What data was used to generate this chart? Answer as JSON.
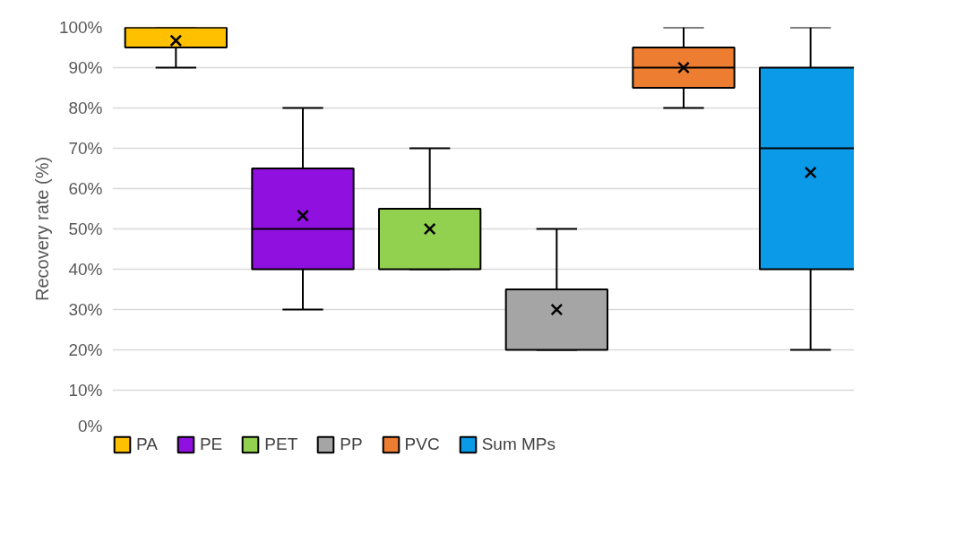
{
  "chart_data": {
    "type": "box",
    "ylabel": "Recovery rate (%)",
    "categories": [
      null
    ],
    "ylim": [
      0,
      100
    ],
    "yticks": [
      {
        "value": 0,
        "label": "0%"
      },
      {
        "value": 10,
        "label": "10%"
      },
      {
        "value": 20,
        "label": "20%"
      },
      {
        "value": 30,
        "label": "30%"
      },
      {
        "value": 40,
        "label": "40%"
      },
      {
        "value": 50,
        "label": "50%"
      },
      {
        "value": 60,
        "label": "60%"
      },
      {
        "value": 70,
        "label": "70%"
      },
      {
        "value": 80,
        "label": "80%"
      },
      {
        "value": 90,
        "label": "90%"
      },
      {
        "value": 100,
        "label": "100%"
      }
    ],
    "grid": "y",
    "legend": "bottom",
    "marker": "cross",
    "series": [
      {
        "name": "PA",
        "color": "#ffc000",
        "boxes": [
          {
            "low": 90,
            "q1": 95,
            "median": 100,
            "q3": 100,
            "high": 100,
            "mean": 96.7
          }
        ]
      },
      {
        "name": "PE",
        "color": "#9010e0",
        "boxes": [
          {
            "low": 30,
            "q1": 40,
            "median": 50,
            "q3": 65,
            "high": 80,
            "mean": 53.3
          }
        ]
      },
      {
        "name": "PET",
        "color": "#92d050",
        "boxes": [
          {
            "low": 40,
            "q1": 40,
            "median": 55,
            "q3": 55,
            "high": 70,
            "mean": 50
          }
        ]
      },
      {
        "name": "PP",
        "color": "#a5a5a5",
        "boxes": [
          {
            "low": 20,
            "q1": 20,
            "median": 35,
            "q3": 35,
            "high": 50,
            "mean": 30
          }
        ]
      },
      {
        "name": "PVC",
        "color": "#ed7d31",
        "boxes": [
          {
            "low": 80,
            "q1": 85,
            "median": 90,
            "q3": 95,
            "high": 100,
            "mean": 90
          }
        ]
      },
      {
        "name": "Sum MPs",
        "color": "#0a9ae8",
        "boxes": [
          {
            "low": 20,
            "q1": 40,
            "median": 70,
            "q3": 90,
            "high": 100,
            "mean": 64
          }
        ]
      }
    ]
  }
}
